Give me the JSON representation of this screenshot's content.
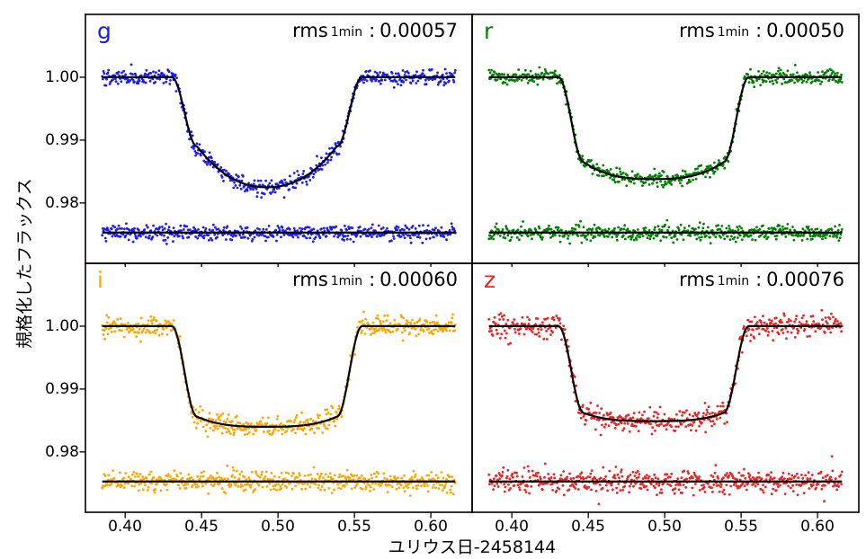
{
  "figure": {
    "background": "#ffffff",
    "xlabel": "ユリウス日-2458144",
    "ylabel": "規格化したフラックス"
  },
  "chart_data": {
    "type": "scatter",
    "layout": "2x2-grid",
    "title": "",
    "xlabel": "ユリウス日-2458144",
    "ylabel": "規格化したフラックス",
    "xlim": [
      0.374,
      0.627
    ],
    "ylim": [
      0.9704,
      1.01
    ],
    "x_tick_labels": [
      "0.40",
      "0.45",
      "0.50",
      "0.55",
      "0.60"
    ],
    "x_tick_values": [
      0.4,
      0.45,
      0.5,
      0.55,
      0.6
    ],
    "y_tick_labels": [
      "1.00",
      "0.99",
      "0.98"
    ],
    "y_tick_values": [
      1.0,
      0.99,
      0.98
    ],
    "grid": false,
    "model_color": "#000000",
    "panels": [
      {
        "band": "g",
        "color": "#1a1aff",
        "rms": {
          "prefix": "rms",
          "sub": "1min",
          "sep": ":",
          "value": "0.00057"
        },
        "baseline_flux": 1.0,
        "transit_model": {
          "t1": 0.4305,
          "t2": 0.447,
          "t3": 0.5385,
          "t4": 0.555,
          "flux_at_contact": 0.989,
          "flux_mid": 0.9825,
          "bowl_exponent": 2.2
        },
        "residual_baseline": 0.9753,
        "scatter": {
          "n": 560,
          "x_start": 0.385,
          "x_end": 0.616,
          "sigma": 0.00062,
          "seed": 101
        }
      },
      {
        "band": "r",
        "color": "#008000",
        "rms": {
          "prefix": "rms",
          "sub": "1min",
          "sep": ":",
          "value": "0.00050"
        },
        "baseline_flux": 1.0,
        "transit_model": {
          "t1": 0.4305,
          "t2": 0.447,
          "t3": 0.5385,
          "t4": 0.555,
          "flux_at_contact": 0.9865,
          "flux_mid": 0.9838,
          "bowl_exponent": 2.8
        },
        "residual_baseline": 0.9753,
        "scatter": {
          "n": 560,
          "x_start": 0.385,
          "x_end": 0.616,
          "sigma": 0.00058,
          "seed": 202
        }
      },
      {
        "band": "i",
        "color": "#ffa500",
        "rms": {
          "prefix": "rms",
          "sub": "1min",
          "sep": ":",
          "value": "0.00060"
        },
        "baseline_flux": 1.0,
        "transit_model": {
          "t1": 0.4305,
          "t2": 0.447,
          "t3": 0.5385,
          "t4": 0.555,
          "flux_at_contact": 0.9856,
          "flux_mid": 0.984,
          "bowl_exponent": 3.0
        },
        "residual_baseline": 0.9753,
        "scatter": {
          "n": 560,
          "x_start": 0.385,
          "x_end": 0.616,
          "sigma": 0.00074,
          "seed": 303
        }
      },
      {
        "band": "z",
        "color": "#ee2222",
        "rms": {
          "prefix": "rms",
          "sub": "1min",
          "sep": ":",
          "value": "0.00076"
        },
        "baseline_flux": 1.0,
        "transit_model": {
          "t1": 0.4305,
          "t2": 0.447,
          "t3": 0.5385,
          "t4": 0.555,
          "flux_at_contact": 0.9862,
          "flux_mid": 0.9849,
          "bowl_exponent": 3.2
        },
        "residual_baseline": 0.9753,
        "scatter": {
          "n": 560,
          "x_start": 0.385,
          "x_end": 0.616,
          "sigma": 0.00095,
          "seed": 404
        }
      }
    ]
  }
}
